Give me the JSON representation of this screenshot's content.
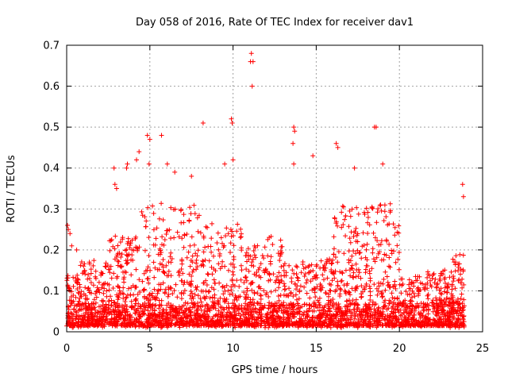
{
  "chart_data": {
    "type": "scatter",
    "title": "Day 058 of 2016, Rate Of TEC Index for receiver dav1",
    "xlabel": "GPS time / hours",
    "ylabel": "ROTI / TECUs",
    "xlim": [
      0,
      25
    ],
    "ylim": [
      0,
      0.7
    ],
    "xticks": [
      "0",
      "5",
      "10",
      "15",
      "20",
      "25"
    ],
    "yticks": [
      "0",
      "0.1",
      "0.2",
      "0.3",
      "0.4",
      "0.5",
      "0.6",
      "0.7"
    ],
    "grid": true,
    "marker": "+",
    "color": "#ff0000",
    "series": [
      {
        "name": "dav1",
        "points": [
          [
            0.05,
            0.26
          ],
          [
            0.1,
            0.25
          ],
          [
            0.2,
            0.24
          ],
          [
            0.3,
            0.21
          ],
          [
            0.55,
            0.13
          ],
          [
            0.6,
            0.2
          ],
          [
            2.85,
            0.4
          ],
          [
            2.9,
            0.36
          ],
          [
            3.0,
            0.35
          ],
          [
            3.6,
            0.4
          ],
          [
            3.65,
            0.41
          ],
          [
            4.2,
            0.42
          ],
          [
            4.35,
            0.44
          ],
          [
            4.85,
            0.48
          ],
          [
            5.0,
            0.47
          ],
          [
            4.95,
            0.41
          ],
          [
            5.7,
            0.48
          ],
          [
            6.05,
            0.41
          ],
          [
            6.5,
            0.39
          ],
          [
            7.5,
            0.38
          ],
          [
            8.2,
            0.51
          ],
          [
            9.5,
            0.41
          ],
          [
            9.9,
            0.52
          ],
          [
            9.95,
            0.51
          ],
          [
            10.0,
            0.42
          ],
          [
            11.1,
            0.68
          ],
          [
            11.05,
            0.66
          ],
          [
            11.2,
            0.66
          ],
          [
            11.15,
            0.6
          ],
          [
            13.65,
            0.5
          ],
          [
            13.7,
            0.49
          ],
          [
            13.6,
            0.46
          ],
          [
            13.65,
            0.41
          ],
          [
            14.8,
            0.43
          ],
          [
            16.2,
            0.46
          ],
          [
            16.3,
            0.45
          ],
          [
            17.3,
            0.4
          ],
          [
            18.5,
            0.5
          ],
          [
            18.6,
            0.5
          ],
          [
            19.0,
            0.41
          ],
          [
            23.8,
            0.36
          ],
          [
            23.85,
            0.33
          ]
        ]
      }
    ]
  }
}
